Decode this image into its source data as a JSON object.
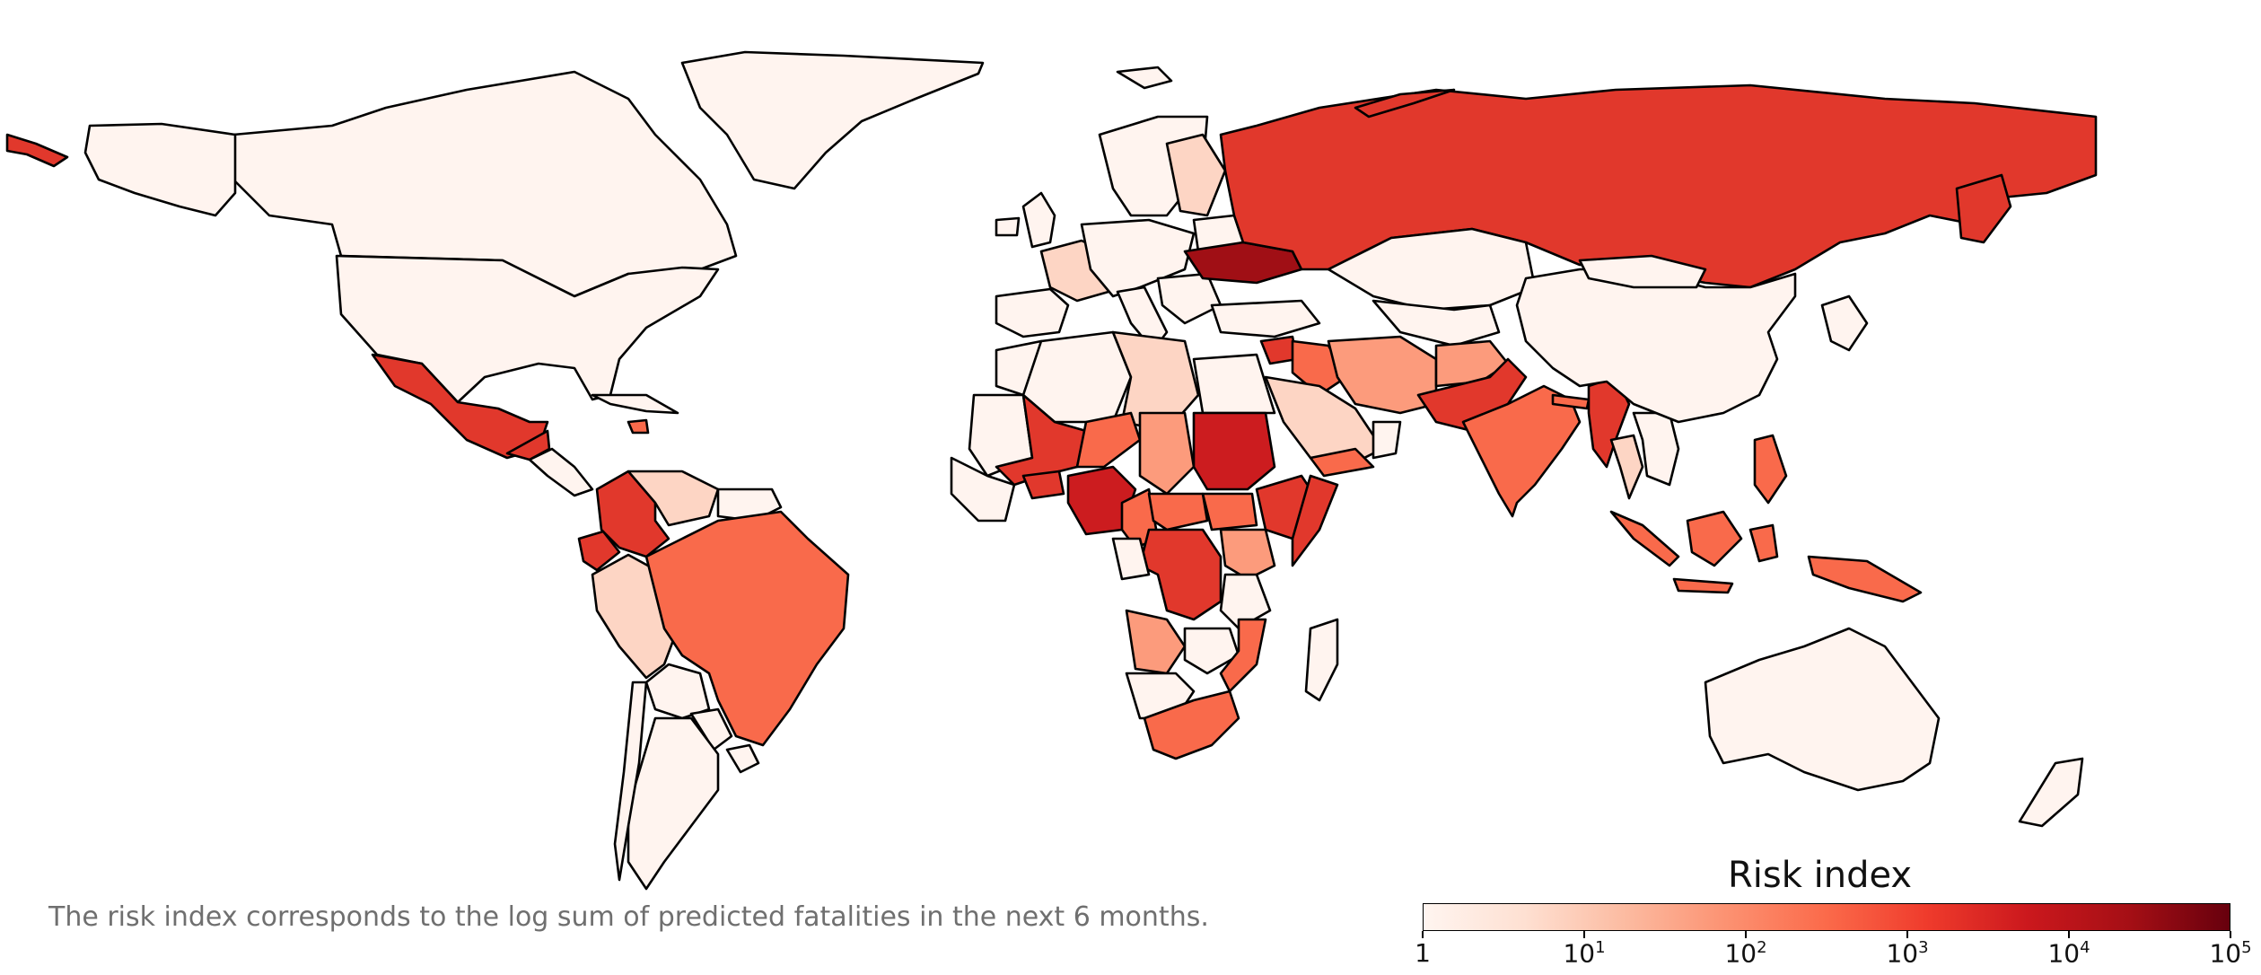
{
  "caption": "The risk index corresponds to the log sum of predicted fatalities in the next 6 months.",
  "legend": {
    "title": "Risk index",
    "scale": "log",
    "range": [
      1,
      100000
    ],
    "colors": [
      "#fff5f0",
      "#fee0d2",
      "#fcbba1",
      "#fc9272",
      "#fb6a4a",
      "#ef3b2c",
      "#cb181d",
      "#a50f15",
      "#67000d"
    ],
    "ticks": [
      {
        "base": "1",
        "exp": ""
      },
      {
        "base": "10",
        "exp": "1"
      },
      {
        "base": "10",
        "exp": "2"
      },
      {
        "base": "10",
        "exp": "3"
      },
      {
        "base": "10",
        "exp": "4"
      },
      {
        "base": "10",
        "exp": "5"
      }
    ]
  },
  "map_fills": {
    "lowest": "#fff4ef",
    "low": "#fdd5c4",
    "mid_low": "#fc9b7c",
    "mid": "#f96a4b",
    "high": "#e1382c",
    "higher": "#cc1c1f",
    "highest": "#a00f15"
  }
}
